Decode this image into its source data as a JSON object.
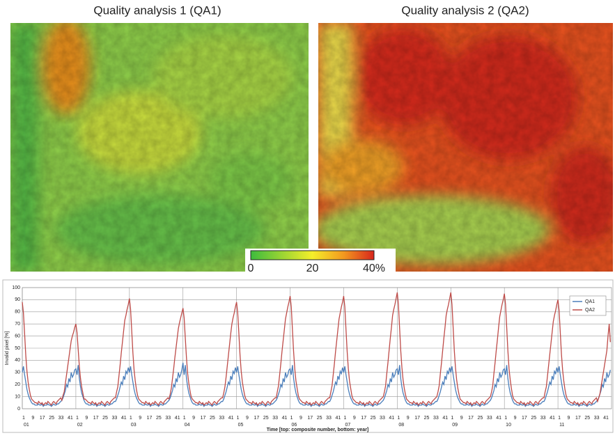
{
  "panels": {
    "left_title": "Quality analysis 1 (QA1)",
    "right_title": "Quality analysis 2 (QA2)",
    "colorbar": {
      "lim": [
        0,
        40
      ],
      "ticks": [
        0,
        20,
        {
          "value": 40,
          "label": "40%"
        }
      ]
    }
  },
  "chart_data": {
    "type": "line",
    "ylabel": "Invalid pixel [%]",
    "xlabel": "Time [top: composite number, bottom: year]",
    "composite_ticks": [
      1,
      9,
      17,
      25,
      33,
      41
    ],
    "years": [
      "01",
      "02",
      "03",
      "04",
      "05",
      "06",
      "07",
      "08",
      "09",
      "10",
      "11"
    ],
    "ylim": [
      0,
      100
    ],
    "yticks": [
      0,
      10,
      20,
      30,
      40,
      50,
      60,
      70,
      80,
      90,
      100
    ],
    "grid": true,
    "legend": "upper right",
    "series": [
      {
        "name": "QA1",
        "color": "#4a7ebb",
        "values": [
          30,
          35,
          28,
          22,
          16,
          12,
          9,
          7,
          5,
          4,
          4,
          3,
          3,
          3,
          4,
          3,
          3,
          4,
          2,
          3,
          3,
          3,
          4,
          3,
          3,
          2,
          3,
          4,
          3,
          3,
          4,
          4,
          5,
          6,
          7,
          9,
          12,
          15,
          20,
          18,
          25,
          22,
          30,
          26,
          28,
          32,
          33,
          28,
          36,
          25,
          18,
          13,
          10,
          7,
          5,
          4,
          4,
          3,
          3,
          3,
          4,
          3,
          3,
          4,
          2,
          3,
          3,
          3,
          4,
          3,
          3,
          2,
          3,
          4,
          3,
          3,
          4,
          4,
          5,
          6,
          6,
          8,
          11,
          14,
          18,
          22,
          20,
          27,
          24,
          31,
          29,
          34,
          30,
          35,
          28,
          22,
          16,
          12,
          9,
          7,
          5,
          4,
          4,
          3,
          3,
          3,
          4,
          3,
          3,
          4,
          2,
          3,
          3,
          3,
          4,
          3,
          3,
          2,
          3,
          4,
          3,
          3,
          4,
          4,
          5,
          6,
          7,
          9,
          12,
          15,
          20,
          18,
          25,
          22,
          30,
          26,
          28,
          32,
          38,
          28,
          36,
          25,
          18,
          13,
          10,
          7,
          5,
          4,
          4,
          3,
          3,
          3,
          4,
          3,
          3,
          4,
          2,
          3,
          3,
          3,
          4,
          3,
          3,
          2,
          3,
          4,
          3,
          3,
          4,
          4,
          5,
          6,
          6,
          8,
          11,
          14,
          18,
          22,
          20,
          27,
          24,
          31,
          29,
          34,
          30,
          35,
          28,
          22,
          16,
          12,
          9,
          7,
          5,
          4,
          4,
          3,
          3,
          3,
          4,
          3,
          3,
          4,
          2,
          3,
          3,
          3,
          4,
          3,
          3,
          2,
          3,
          4,
          3,
          3,
          4,
          4,
          5,
          6,
          7,
          9,
          12,
          15,
          20,
          18,
          25,
          22,
          30,
          26,
          28,
          32,
          33,
          28,
          36,
          25,
          18,
          13,
          10,
          7,
          5,
          4,
          4,
          3,
          3,
          3,
          4,
          3,
          3,
          4,
          2,
          3,
          3,
          3,
          4,
          3,
          3,
          2,
          3,
          4,
          3,
          3,
          4,
          4,
          5,
          6,
          6,
          8,
          11,
          14,
          18,
          22,
          20,
          27,
          24,
          31,
          29,
          34,
          30,
          35,
          28,
          22,
          16,
          12,
          9,
          7,
          5,
          4,
          4,
          3,
          3,
          3,
          4,
          3,
          3,
          4,
          2,
          3,
          3,
          3,
          4,
          3,
          3,
          2,
          3,
          4,
          3,
          3,
          4,
          4,
          5,
          6,
          7,
          9,
          12,
          15,
          20,
          18,
          25,
          22,
          30,
          26,
          28,
          32,
          33,
          28,
          36,
          25,
          18,
          13,
          10,
          7,
          5,
          4,
          4,
          3,
          3,
          3,
          4,
          3,
          3,
          4,
          2,
          3,
          3,
          3,
          4,
          3,
          3,
          2,
          3,
          4,
          3,
          3,
          4,
          4,
          5,
          6,
          6,
          8,
          11,
          14,
          18,
          22,
          20,
          27,
          24,
          31,
          29,
          34,
          30,
          35,
          28,
          22,
          16,
          12,
          9,
          7,
          5,
          4,
          4,
          3,
          3,
          3,
          4,
          3,
          3,
          4,
          2,
          3,
          3,
          3,
          4,
          3,
          3,
          2,
          3,
          4,
          3,
          3,
          4,
          4,
          5,
          6,
          7,
          9,
          12,
          15,
          20,
          18,
          25,
          22,
          30,
          26,
          28,
          32,
          33,
          28,
          36,
          25,
          18,
          13,
          10,
          7,
          5,
          4,
          4,
          3,
          3,
          3,
          4,
          3,
          3,
          4,
          2,
          3,
          3,
          3,
          4,
          3,
          3,
          2,
          3,
          4,
          3,
          3,
          4,
          4,
          5,
          6,
          6,
          8,
          11,
          14,
          18,
          22,
          20,
          27,
          24,
          31,
          29,
          34,
          30,
          35,
          28,
          22,
          16,
          12,
          9,
          7,
          5,
          4,
          4,
          3,
          3,
          3,
          4,
          3,
          3,
          4,
          2,
          3,
          3,
          3,
          4,
          3,
          3,
          2,
          3,
          4,
          3,
          3,
          4,
          4,
          5,
          6,
          7,
          9,
          12,
          15,
          20,
          18,
          25,
          22,
          30,
          26,
          28,
          32
        ]
      },
      {
        "name": "QA2",
        "color": "#be4b48",
        "values": [
          88,
          79,
          62,
          44,
          31,
          22,
          16,
          11,
          8,
          7,
          6,
          5,
          5,
          4,
          6,
          5,
          4,
          5,
          3,
          4,
          5,
          4,
          6,
          5,
          4,
          3,
          5,
          6,
          5,
          4,
          6,
          7,
          8,
          9,
          7,
          11,
          14,
          21,
          28,
          35,
          42,
          49,
          56,
          60,
          63,
          67,
          70,
          63,
          49,
          35,
          25,
          18,
          13,
          8,
          8,
          7,
          6,
          5,
          5,
          4,
          6,
          5,
          4,
          5,
          3,
          4,
          5,
          4,
          6,
          5,
          4,
          3,
          5,
          6,
          5,
          4,
          6,
          7,
          8,
          9,
          9,
          14,
          18,
          27,
          36,
          46,
          55,
          64,
          73,
          77,
          82,
          86,
          91,
          82,
          64,
          46,
          32,
          23,
          16,
          11,
          8,
          7,
          6,
          5,
          5,
          4,
          6,
          5,
          4,
          5,
          3,
          4,
          5,
          4,
          6,
          5,
          4,
          3,
          5,
          6,
          5,
          4,
          6,
          7,
          8,
          9,
          8,
          12,
          17,
          25,
          33,
          42,
          50,
          58,
          66,
          71,
          75,
          79,
          83,
          75,
          58,
          42,
          29,
          21,
          15,
          10,
          8,
          7,
          6,
          5,
          5,
          4,
          6,
          5,
          4,
          5,
          3,
          4,
          5,
          4,
          6,
          5,
          4,
          3,
          5,
          6,
          5,
          4,
          6,
          7,
          8,
          9,
          9,
          13,
          18,
          26,
          35,
          44,
          53,
          62,
          70,
          75,
          79,
          84,
          88,
          79,
          62,
          44,
          31,
          22,
          16,
          11,
          8,
          7,
          6,
          5,
          5,
          4,
          6,
          5,
          4,
          5,
          3,
          4,
          5,
          4,
          6,
          5,
          4,
          3,
          5,
          6,
          5,
          4,
          6,
          7,
          8,
          9,
          9,
          14,
          19,
          28,
          37,
          47,
          56,
          65,
          74,
          79,
          84,
          88,
          93,
          84,
          65,
          47,
          33,
          23,
          17,
          11,
          8,
          7,
          6,
          5,
          5,
          4,
          6,
          5,
          4,
          5,
          3,
          4,
          5,
          4,
          6,
          5,
          4,
          3,
          5,
          6,
          5,
          4,
          6,
          7,
          8,
          9,
          9,
          14,
          19,
          28,
          37,
          47,
          56,
          65,
          74,
          79,
          84,
          88,
          93,
          84,
          65,
          47,
          33,
          23,
          17,
          11,
          8,
          7,
          6,
          5,
          5,
          4,
          6,
          5,
          4,
          5,
          3,
          4,
          5,
          4,
          6,
          5,
          4,
          3,
          5,
          6,
          5,
          4,
          6,
          7,
          8,
          9,
          10,
          14,
          19,
          29,
          38,
          48,
          58,
          67,
          77,
          82,
          86,
          91,
          96,
          86,
          67,
          48,
          34,
          24,
          17,
          12,
          8,
          7,
          6,
          5,
          5,
          4,
          6,
          5,
          4,
          5,
          3,
          4,
          5,
          4,
          6,
          5,
          4,
          3,
          5,
          6,
          5,
          4,
          6,
          7,
          8,
          9,
          10,
          14,
          19,
          29,
          38,
          48,
          58,
          67,
          77,
          82,
          86,
          91,
          96,
          86,
          67,
          48,
          34,
          24,
          17,
          12,
          8,
          7,
          6,
          5,
          5,
          4,
          6,
          5,
          4,
          5,
          3,
          4,
          5,
          4,
          6,
          5,
          4,
          3,
          5,
          6,
          5,
          4,
          6,
          7,
          8,
          9,
          10,
          14,
          19,
          29,
          38,
          48,
          57,
          67,
          76,
          81,
          86,
          90,
          95,
          86,
          67,
          48,
          33,
          24,
          17,
          11,
          8,
          7,
          6,
          5,
          5,
          4,
          6,
          5,
          4,
          5,
          3,
          4,
          5,
          4,
          6,
          5,
          4,
          3,
          5,
          6,
          5,
          4,
          6,
          7,
          8,
          9,
          9,
          14,
          18,
          27,
          36,
          45,
          54,
          63,
          72,
          77,
          81,
          86,
          90,
          81,
          63,
          45,
          32,
          23,
          16,
          11,
          8,
          7,
          6,
          5,
          5,
          4,
          6,
          5,
          4,
          5,
          3,
          4,
          5,
          4,
          6,
          5,
          4,
          3,
          5,
          6,
          5,
          4,
          6,
          7,
          8,
          9,
          6,
          9,
          12,
          18,
          24,
          30,
          36,
          42,
          48,
          60,
          70,
          55
        ]
      }
    ]
  }
}
